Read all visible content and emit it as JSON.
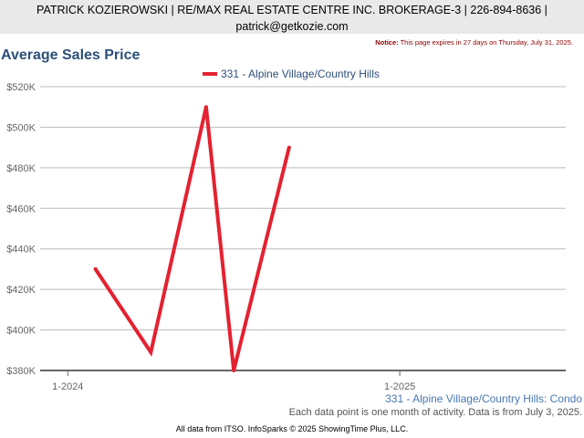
{
  "header": {
    "line1": "PATRICK KOZIEROWSKI | RE/MAX REAL ESTATE CENTRE INC. BROKERAGE-3 | 226-894-8636 |",
    "line2": "patrick@getkozie.com"
  },
  "notice": {
    "label": "Notice:",
    "text": "This page expires in 27 days on Thursday, July 31, 2025."
  },
  "footer": {
    "series_caption": "331 - Alpine Village/Country Hills: Condo",
    "note": "Each data point is one month of activity. Data is from July 3, 2025.",
    "credit": "All data from ITSO. InfoSparks © 2025 ShowingTime Plus, LLC."
  },
  "colors": {
    "series": "#e42130",
    "title": "#2c4f78",
    "grid": "#bbbbbb",
    "axis": "#666666"
  },
  "chart_data": {
    "type": "line",
    "title": "Average Sales Price",
    "xlabel": "",
    "ylabel": "",
    "ylim": [
      380000,
      520000
    ],
    "yticks": [
      380000,
      400000,
      420000,
      440000,
      460000,
      480000,
      500000,
      520000
    ],
    "ytick_labels": [
      "$380K",
      "$400K",
      "$420K",
      "$440K",
      "$460K",
      "$480K",
      "$500K",
      "$520K"
    ],
    "xlim": [
      "2023-12",
      "2025-07"
    ],
    "xticks": [
      "2024-01",
      "2025-01"
    ],
    "xtick_labels": [
      "1-2024",
      "1-2025"
    ],
    "grid": true,
    "legend_position": "top",
    "series": [
      {
        "name": "331 - Alpine Village/Country Hills",
        "x": [
          "2024-02",
          "2024-04",
          "2024-06",
          "2024-07",
          "2024-09"
        ],
        "values": [
          430000,
          389000,
          510000,
          380000,
          490000
        ]
      }
    ]
  }
}
